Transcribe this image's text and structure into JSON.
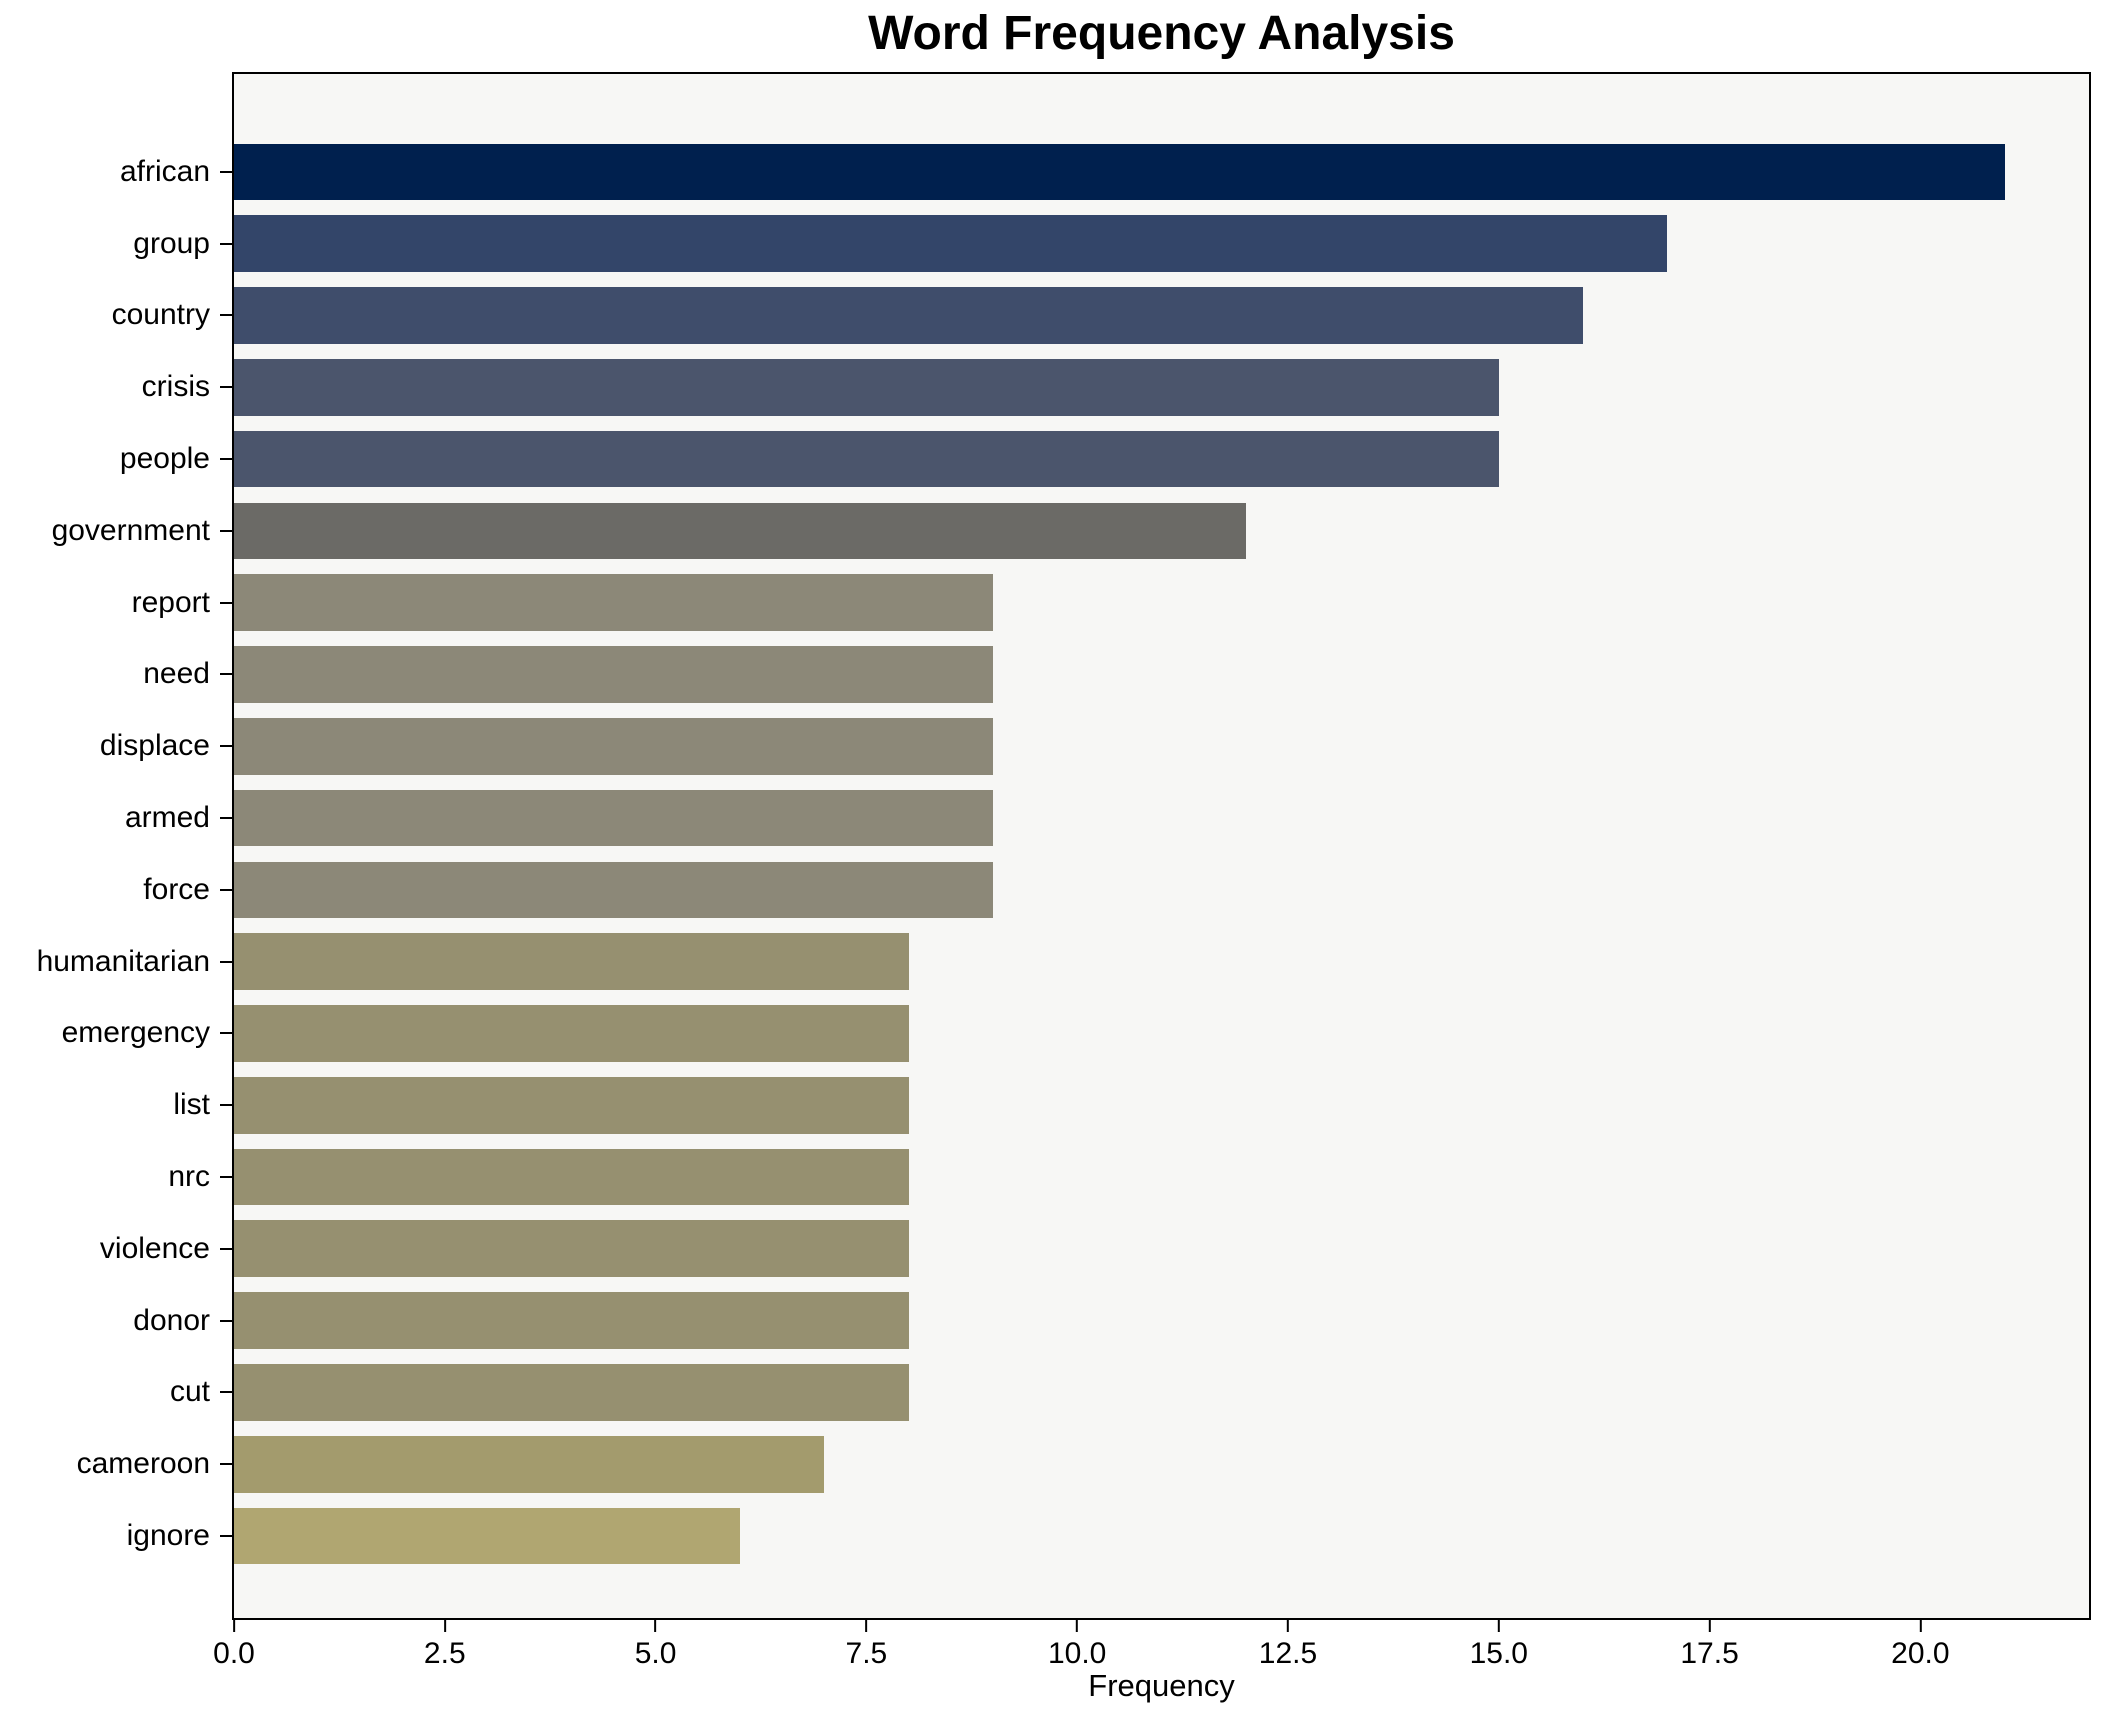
{
  "chart_data": {
    "type": "bar",
    "orientation": "horizontal",
    "title": "Word Frequency Analysis",
    "xlabel": "Frequency",
    "ylabel": "",
    "grid": false,
    "legend_position": "none",
    "xlim": [
      0,
      22
    ],
    "x_tick_labels": [
      "0.0",
      "2.5",
      "5.0",
      "7.5",
      "10.0",
      "12.5",
      "15.0",
      "17.5",
      "20.0"
    ],
    "x_tick_values": [
      0,
      2.5,
      5,
      7.5,
      10,
      12.5,
      15,
      17.5,
      20
    ],
    "categories": [
      "african",
      "group",
      "country",
      "crisis",
      "people",
      "government",
      "report",
      "need",
      "displace",
      "armed",
      "force",
      "humanitarian",
      "emergency",
      "list",
      "nrc",
      "violence",
      "donor",
      "cut",
      "cameroon",
      "ignore"
    ],
    "values": [
      21,
      17,
      16,
      15,
      15,
      12,
      9,
      9,
      9,
      9,
      9,
      8,
      8,
      8,
      8,
      8,
      8,
      8,
      7,
      6
    ],
    "bar_colors": [
      "#00204e",
      "#334569",
      "#3f4d6b",
      "#4b556c",
      "#4b556c",
      "#6b6a66",
      "#8c8878",
      "#8c8878",
      "#8c8878",
      "#8c8878",
      "#8c8878",
      "#969070",
      "#969070",
      "#969070",
      "#969070",
      "#969070",
      "#969070",
      "#969070",
      "#a39b6d",
      "#b0a671"
    ],
    "colormap": "cividis-reversed",
    "plot_background": "#f7f7f5",
    "figure_background": "#ffffff",
    "spine_color": "#000000",
    "text_color": "#000000"
  }
}
